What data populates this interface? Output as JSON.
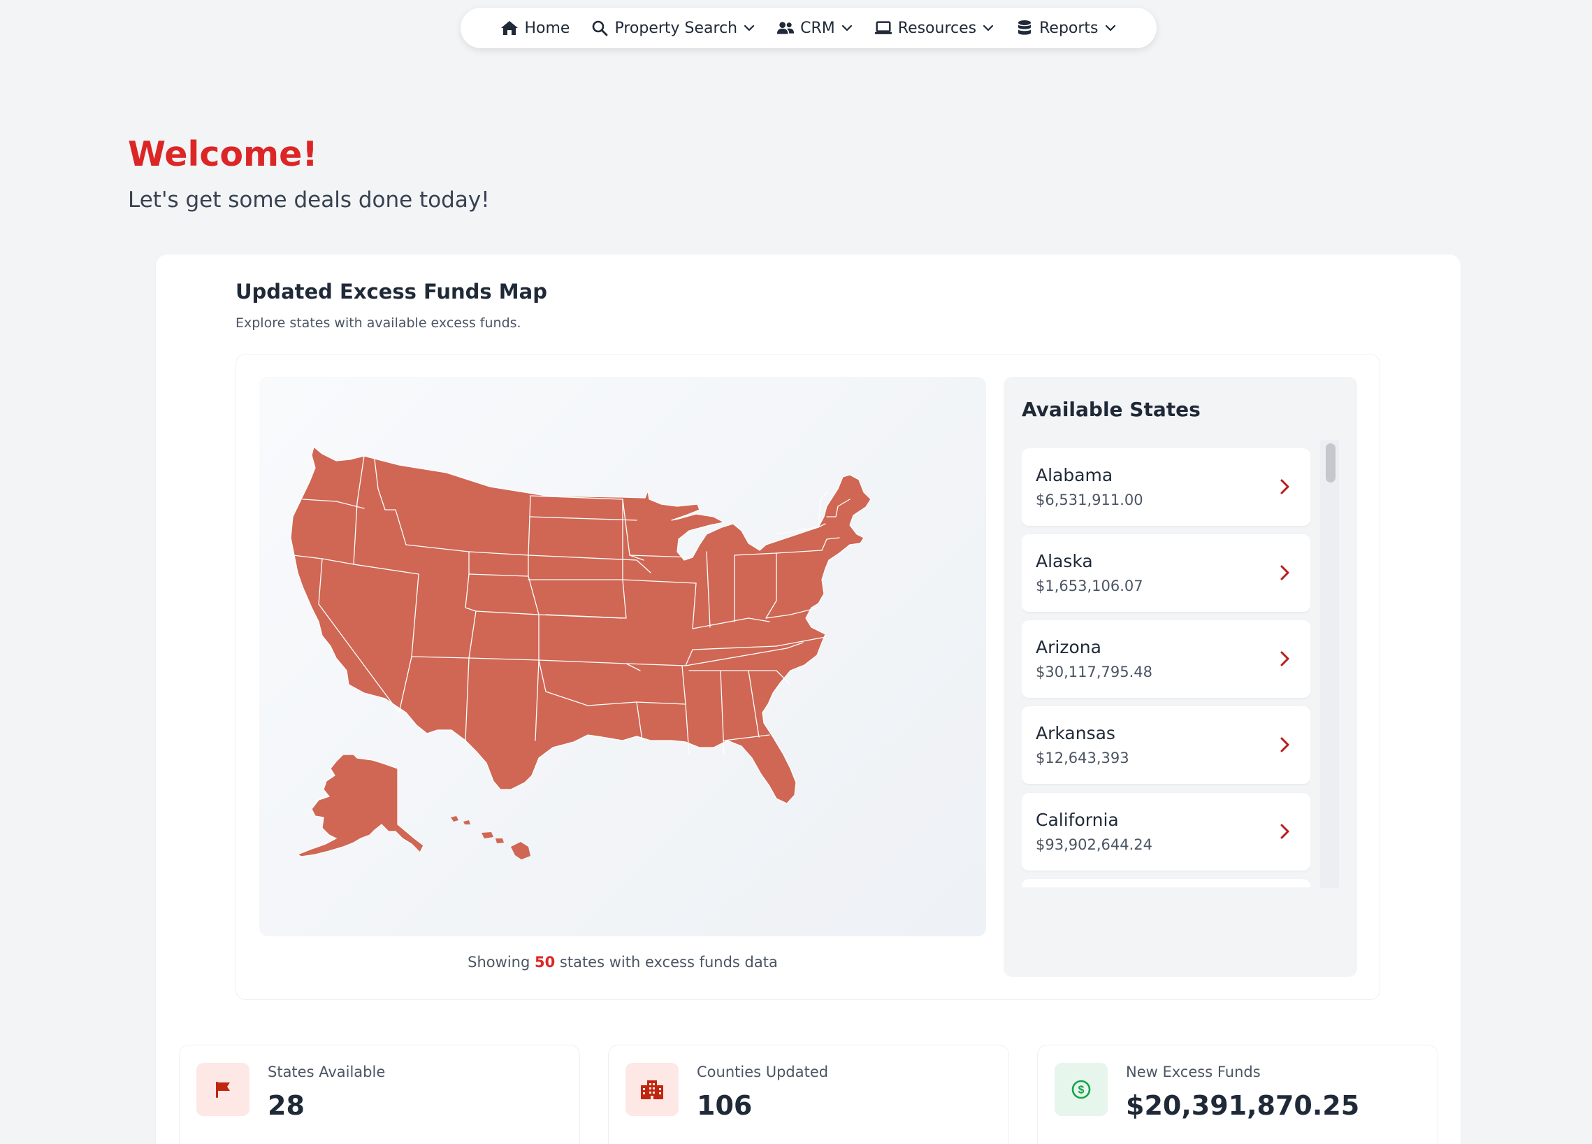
{
  "nav": {
    "items": [
      {
        "label": "Home",
        "icon": "home-icon",
        "has_dropdown": false
      },
      {
        "label": "Property Search",
        "icon": "search-icon",
        "has_dropdown": true
      },
      {
        "label": "CRM",
        "icon": "users-icon",
        "has_dropdown": true
      },
      {
        "label": "Resources",
        "icon": "laptop-icon",
        "has_dropdown": true
      },
      {
        "label": "Reports",
        "icon": "database-icon",
        "has_dropdown": true
      }
    ]
  },
  "welcome": {
    "title": "Welcome!",
    "subtitle": "Let's get some deals done today!"
  },
  "map_section": {
    "title": "Updated Excess Funds Map",
    "subtitle": "Explore states with available excess funds.",
    "caption_prefix": "Showing",
    "caption_count": "50",
    "caption_suffix": "states with excess funds data",
    "map_fill_color": "#cf6754"
  },
  "states_panel": {
    "title": "Available States",
    "states": [
      {
        "name": "Alabama",
        "amount": "$6,531,911.00"
      },
      {
        "name": "Alaska",
        "amount": "$1,653,106.07"
      },
      {
        "name": "Arizona",
        "amount": "$30,117,795.48"
      },
      {
        "name": "Arkansas",
        "amount": "$12,643,393"
      },
      {
        "name": "California",
        "amount": "$93,902,644.24"
      }
    ]
  },
  "stats": [
    {
      "label": "States Available",
      "value": "28",
      "icon": "flag-icon",
      "icon_color": "#c0260f",
      "icon_bg": "#fde8e6"
    },
    {
      "label": "Counties Updated",
      "value": "106",
      "icon": "building-icon",
      "icon_color": "#c0260f",
      "icon_bg": "#fde8e6"
    },
    {
      "label": "New Excess Funds",
      "value": "$20,391,870.25",
      "icon": "dollar-circle-icon",
      "icon_color": "#16a34a",
      "icon_bg": "#e6f6ec"
    }
  ],
  "colors": {
    "accent": "#dc2626",
    "chevron": "#b91c1c",
    "background": "#f3f4f6"
  }
}
